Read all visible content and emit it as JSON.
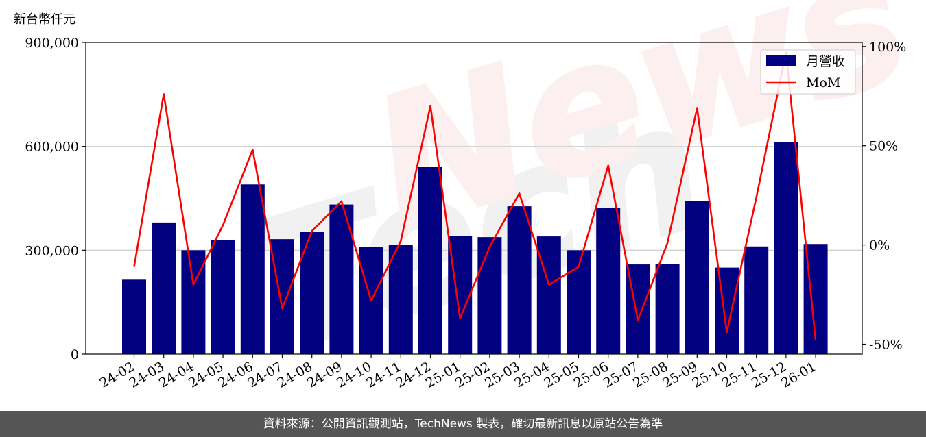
{
  "chart_data": {
    "type": "bar",
    "y_unit_label": "新台幣仟元",
    "categories": [
      "24-02",
      "24-03",
      "24-04",
      "24-05",
      "24-06",
      "24-07",
      "24-08",
      "24-09",
      "24-10",
      "24-11",
      "24-12",
      "25-01",
      "25-02",
      "25-03",
      "25-04",
      "25-05",
      "25-06",
      "25-07",
      "25-08",
      "25-09",
      "25-10",
      "25-11",
      "25-12",
      "26-01"
    ],
    "series": [
      {
        "name": "月營收",
        "kind": "bar",
        "axis": "left",
        "color": "#000080",
        "values": [
          215000,
          380000,
          300000,
          330000,
          490000,
          332000,
          354000,
          432000,
          310000,
          316000,
          540000,
          342000,
          338000,
          427000,
          340000,
          300000,
          422000,
          259000,
          261000,
          443000,
          250000,
          311000,
          612000,
          318000
        ]
      },
      {
        "name": "MoM",
        "kind": "line",
        "axis": "right",
        "color": "#ff0000",
        "values": [
          -11,
          76,
          -20,
          10,
          48,
          -32,
          7,
          22,
          -28,
          2,
          70,
          -37,
          -1,
          26,
          -20,
          -11,
          40,
          -38,
          1,
          69,
          -44,
          24,
          97,
          -48
        ]
      }
    ],
    "y_left": {
      "ylim": [
        0,
        900000
      ],
      "ticks": [
        0,
        300000,
        600000,
        900000
      ],
      "tick_labels": [
        "0",
        "300,000",
        "600,000",
        "900,000"
      ]
    },
    "y_right": {
      "ylim": [
        -55,
        102
      ],
      "ticks": [
        -50,
        0,
        50,
        100
      ],
      "tick_labels": [
        "-50%",
        "0%",
        "50%",
        "100%"
      ]
    },
    "grid": "horizontal at left-axis ticks",
    "legend_position": "top-right",
    "watermark": "TechNews"
  },
  "footer": {
    "source_text": "資料來源：公開資訊觀測站，TechNews 製表，確切最新訊息以原站公告為準"
  }
}
